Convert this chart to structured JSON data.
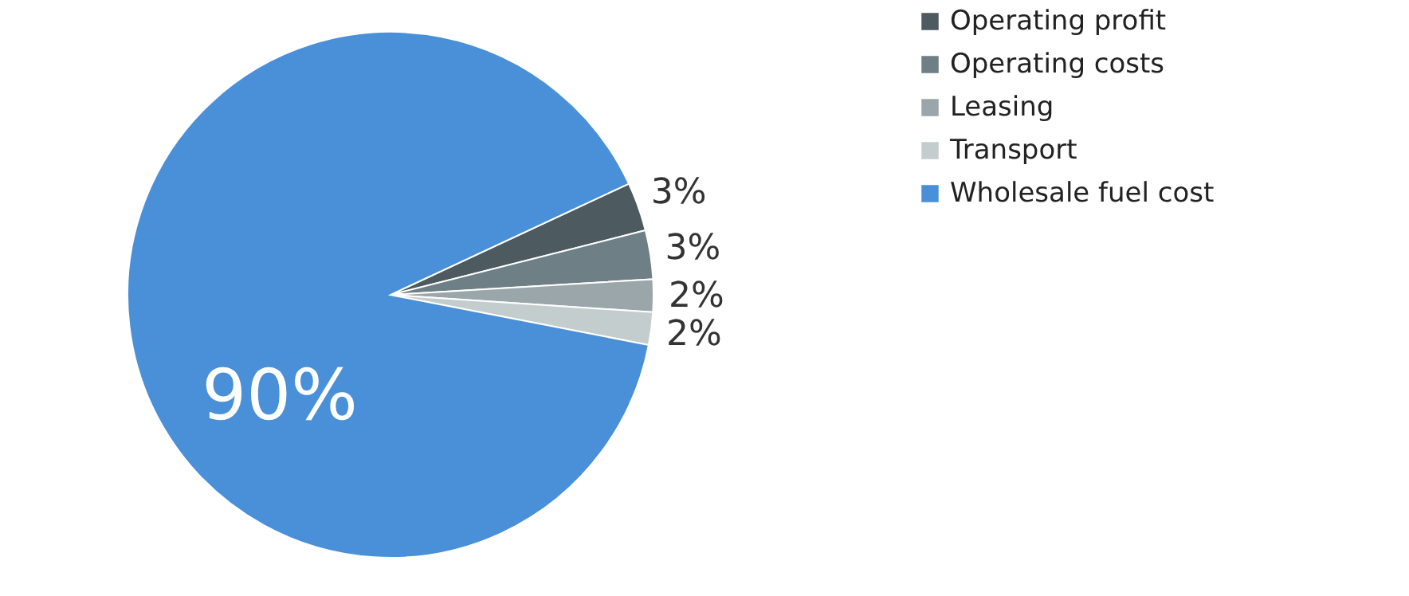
{
  "chart_data": {
    "type": "pie",
    "categories": [
      "Operating profit",
      "Operating costs",
      "Leasing",
      "Transport",
      "Wholesale fuel cost"
    ],
    "values": [
      3,
      3,
      2,
      2,
      90
    ],
    "colors": [
      "#4d5a60",
      "#6f7f86",
      "#9ba6aa",
      "#c4cdcd",
      "#4a90d9"
    ],
    "value_labels": [
      "3%",
      "3%",
      "2%",
      "2%",
      "90%"
    ],
    "legend": "right"
  }
}
